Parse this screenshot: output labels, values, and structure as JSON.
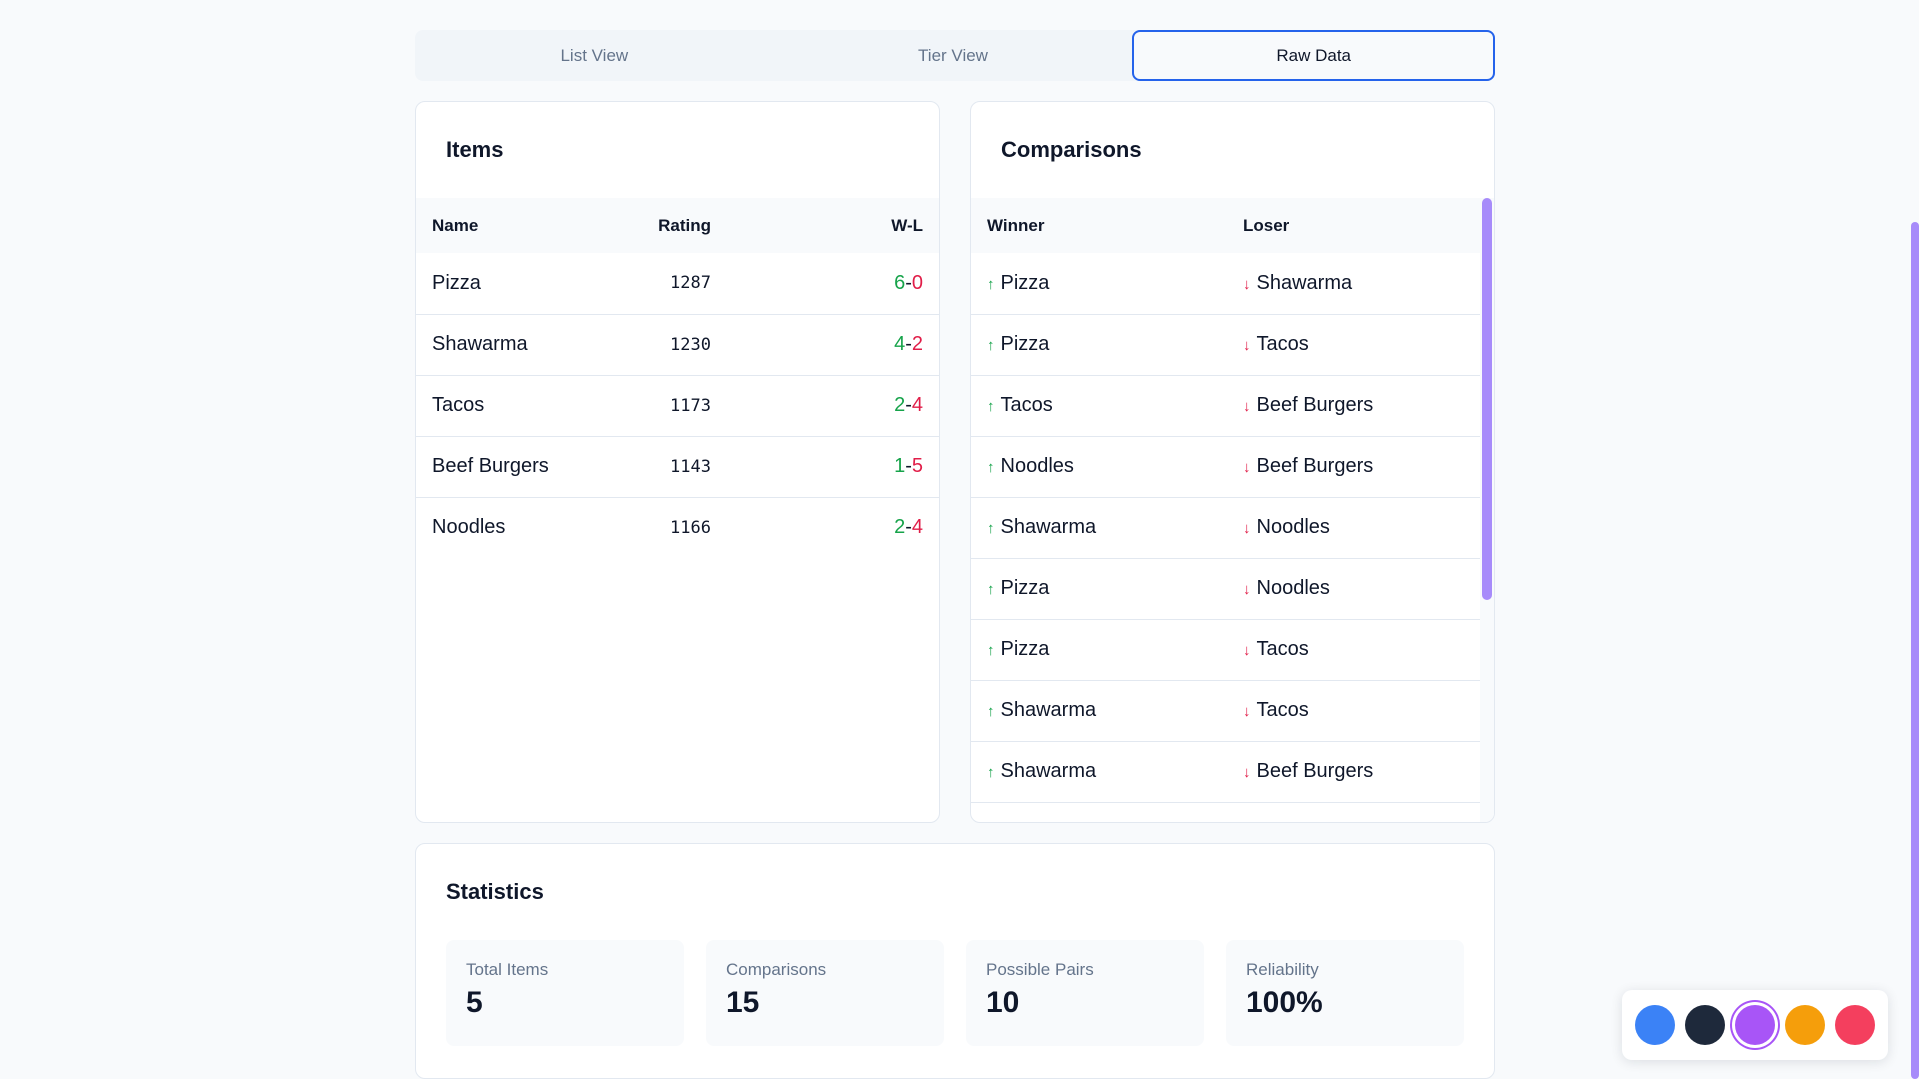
{
  "tabs": [
    {
      "label": "List View"
    },
    {
      "label": "Tier View"
    },
    {
      "label": "Raw Data"
    }
  ],
  "items": {
    "title": "Items",
    "columns": {
      "name": "Name",
      "rating": "Rating",
      "wl": "W-L"
    },
    "rows": [
      {
        "name": "Pizza",
        "rating": "1287",
        "wins": "6",
        "losses": "0"
      },
      {
        "name": "Shawarma",
        "rating": "1230",
        "wins": "4",
        "losses": "2"
      },
      {
        "name": "Tacos",
        "rating": "1173",
        "wins": "2",
        "losses": "4"
      },
      {
        "name": "Beef Burgers",
        "rating": "1143",
        "wins": "1",
        "losses": "5"
      },
      {
        "name": "Noodles",
        "rating": "1166",
        "wins": "2",
        "losses": "4"
      }
    ]
  },
  "comparisons": {
    "title": "Comparisons",
    "columns": {
      "winner": "Winner",
      "loser": "Loser"
    },
    "rows": [
      {
        "winner": "Pizza",
        "loser": "Shawarma"
      },
      {
        "winner": "Pizza",
        "loser": "Tacos"
      },
      {
        "winner": "Tacos",
        "loser": "Beef Burgers"
      },
      {
        "winner": "Noodles",
        "loser": "Beef Burgers"
      },
      {
        "winner": "Shawarma",
        "loser": "Noodles"
      },
      {
        "winner": "Pizza",
        "loser": "Noodles"
      },
      {
        "winner": "Pizza",
        "loser": "Tacos"
      },
      {
        "winner": "Shawarma",
        "loser": "Tacos"
      },
      {
        "winner": "Shawarma",
        "loser": "Beef Burgers"
      }
    ]
  },
  "statistics": {
    "title": "Statistics",
    "stats": [
      {
        "label": "Total Items",
        "value": "5"
      },
      {
        "label": "Comparisons",
        "value": "15"
      },
      {
        "label": "Possible Pairs",
        "value": "10"
      },
      {
        "label": "Reliability",
        "value": "100%"
      }
    ]
  },
  "palette": {
    "colors": [
      "#3b82f6",
      "#1e293b",
      "#a855f7",
      "#f59e0b",
      "#f43f5e"
    ],
    "selected_index": 2
  }
}
